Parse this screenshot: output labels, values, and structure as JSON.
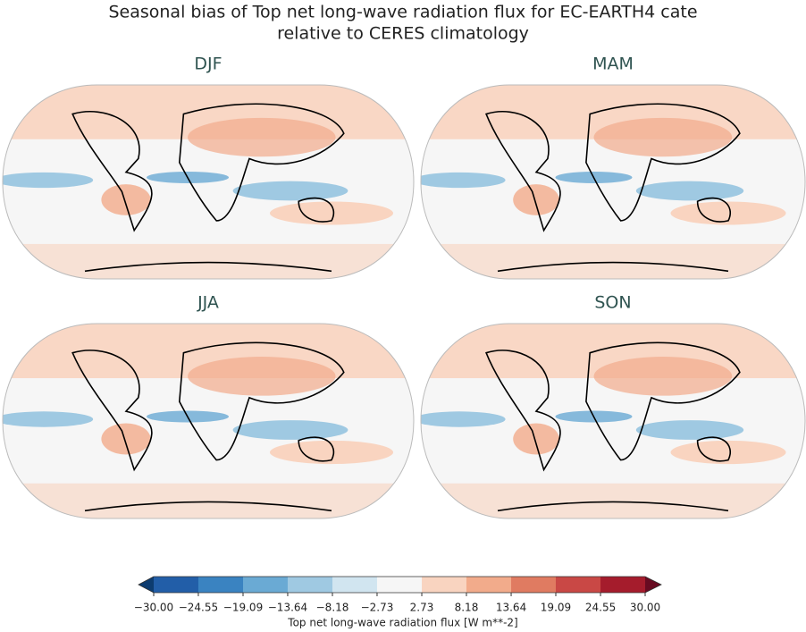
{
  "title_lines": [
    "Seasonal bias of Top net long-wave radiation flux for EC-EARTH4 cate",
    "relative to CERES climatology"
  ],
  "panels": [
    {
      "label": "DJF"
    },
    {
      "label": "MAM"
    },
    {
      "label": "JJA"
    },
    {
      "label": "SON"
    }
  ],
  "colorbar": {
    "label": "Top net long-wave radiation flux [W m**-2]",
    "ticks": [
      {
        "value": -30,
        "label": "−30.00"
      },
      {
        "value": -24.55,
        "label": "−24.55"
      },
      {
        "value": -19.09,
        "label": "−19.09"
      },
      {
        "value": -13.64,
        "label": "−13.64"
      },
      {
        "value": -8.18,
        "label": "−8.18"
      },
      {
        "value": -2.73,
        "label": "−2.73"
      },
      {
        "value": 2.73,
        "label": "2.73"
      },
      {
        "value": 8.18,
        "label": "8.18"
      },
      {
        "value": 13.64,
        "label": "13.64"
      },
      {
        "value": 19.09,
        "label": "19.09"
      },
      {
        "value": 24.55,
        "label": "24.55"
      },
      {
        "value": 30,
        "label": "30.00"
      }
    ],
    "colors": [
      "#225ea8",
      "#3a83c1",
      "#6aaad4",
      "#9fc9e2",
      "#d1e5f0",
      "#f6f6f6",
      "#f9d4c0",
      "#f2ab8b",
      "#e07b61",
      "#c94845",
      "#a51c2c"
    ],
    "under_color": "#0d3c70",
    "over_color": "#680b21"
  }
}
